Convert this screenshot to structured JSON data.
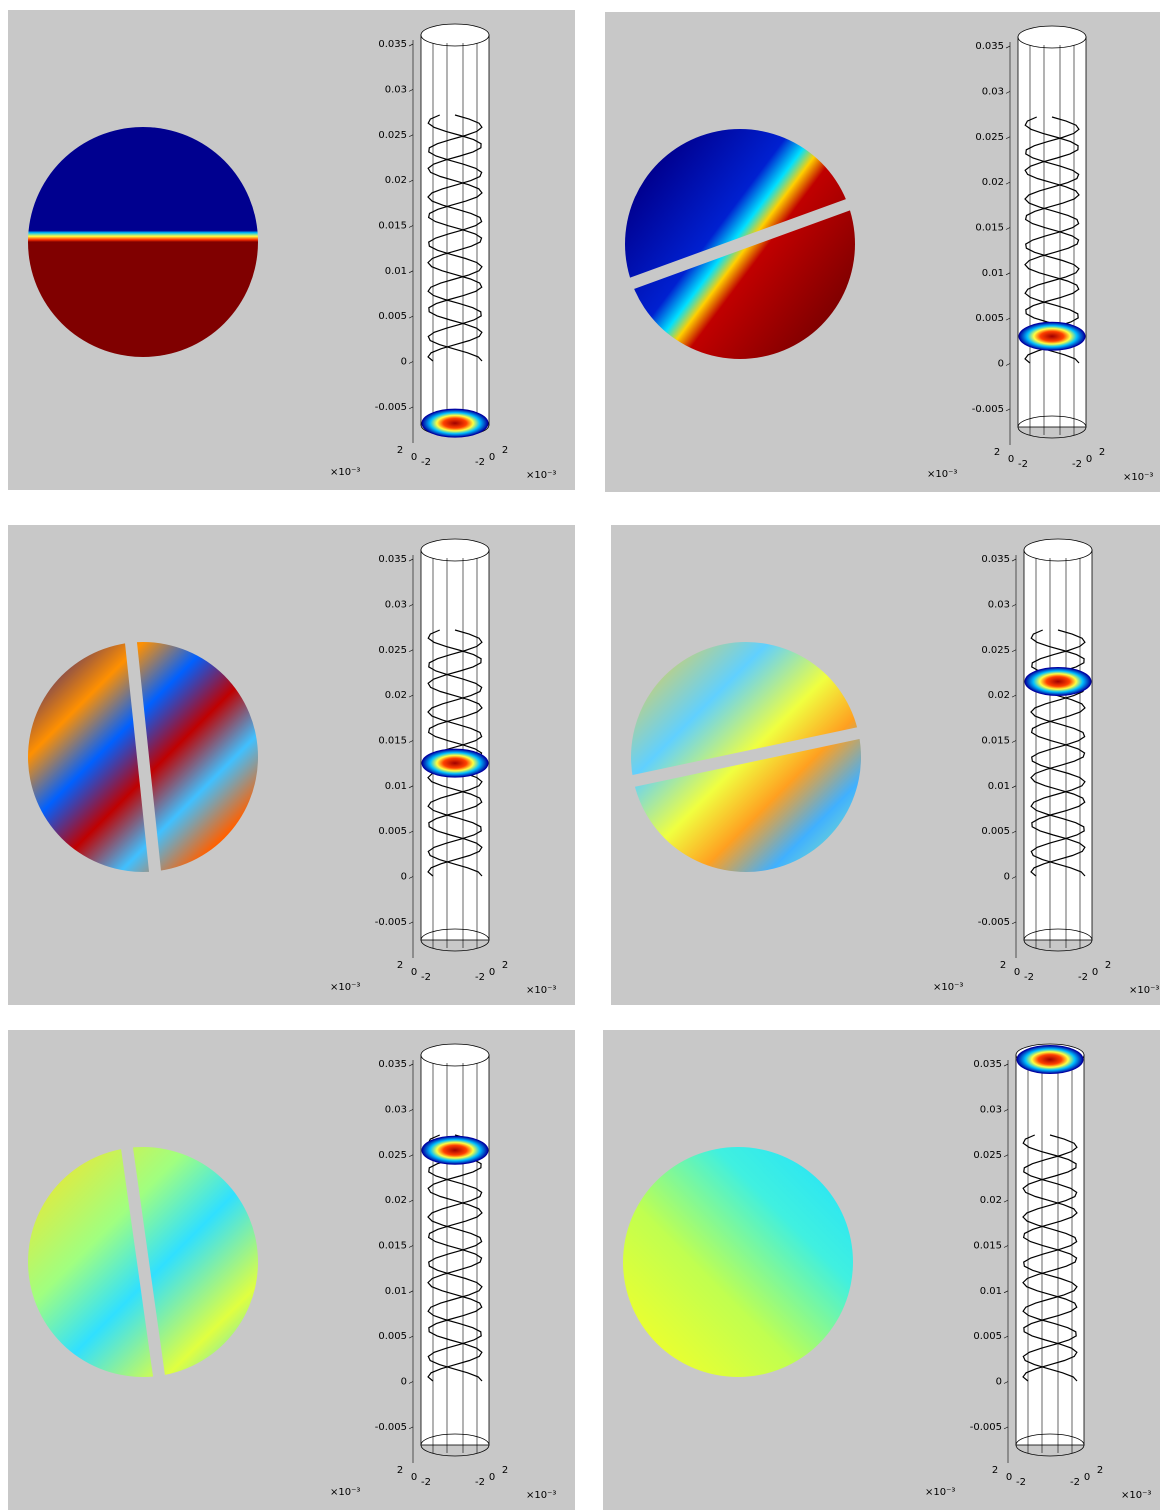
{
  "chart_data": [
    {
      "type": "slice",
      "zlim": [
        -0.007,
        0.036
      ],
      "zticks": [
        0.035,
        0.03,
        0.025,
        0.02,
        0.015,
        0.01,
        0.005,
        0,
        -0.005
      ],
      "xticks": [
        -2,
        0,
        2
      ],
      "yticks": [
        2,
        0,
        -2
      ],
      "x_scale_label": "×10⁻³",
      "y_scale_label": "×10⁻³",
      "slice_z": -0.0068
    },
    {
      "type": "slice",
      "zlim": [
        -0.007,
        0.036
      ],
      "zticks": [
        0.035,
        0.03,
        0.025,
        0.02,
        0.015,
        0.01,
        0.005,
        0,
        -0.005
      ],
      "xticks": [
        -2,
        0,
        2
      ],
      "yticks": [
        2,
        0,
        -2
      ],
      "x_scale_label": "×10⁻³",
      "y_scale_label": "×10⁻³",
      "slice_z": 0.003
    },
    {
      "type": "slice",
      "zlim": [
        -0.007,
        0.036
      ],
      "zticks": [
        0.035,
        0.03,
        0.025,
        0.02,
        0.015,
        0.01,
        0.005,
        0,
        -0.005
      ],
      "xticks": [
        -2,
        0,
        2
      ],
      "yticks": [
        2,
        0,
        -2
      ],
      "x_scale_label": "×10⁻³",
      "y_scale_label": "×10⁻³",
      "slice_z": 0.0125
    },
    {
      "type": "slice",
      "zlim": [
        -0.007,
        0.036
      ],
      "zticks": [
        0.035,
        0.03,
        0.025,
        0.02,
        0.015,
        0.01,
        0.005,
        0,
        -0.005
      ],
      "xticks": [
        -2,
        0,
        2
      ],
      "yticks": [
        2,
        0,
        -2
      ],
      "x_scale_label": "×10⁻³",
      "y_scale_label": "×10⁻³",
      "slice_z": 0.0215
    },
    {
      "type": "slice",
      "zlim": [
        -0.007,
        0.036
      ],
      "zticks": [
        0.035,
        0.03,
        0.025,
        0.02,
        0.015,
        0.01,
        0.005,
        0,
        -0.005
      ],
      "xticks": [
        -2,
        0,
        2
      ],
      "yticks": [
        2,
        0,
        -2
      ],
      "x_scale_label": "×10⁻³",
      "y_scale_label": "×10⁻³",
      "slice_z": 0.0255
    },
    {
      "type": "slice",
      "zlim": [
        -0.007,
        0.036
      ],
      "zticks": [
        0.035,
        0.03,
        0.025,
        0.02,
        0.015,
        0.01,
        0.005,
        0,
        -0.005
      ],
      "xticks": [
        -2,
        0,
        2
      ],
      "yticks": [
        2,
        0,
        -2
      ],
      "x_scale_label": "×10⁻³",
      "y_scale_label": "×10⁻³",
      "slice_z": 0.0355
    }
  ]
}
